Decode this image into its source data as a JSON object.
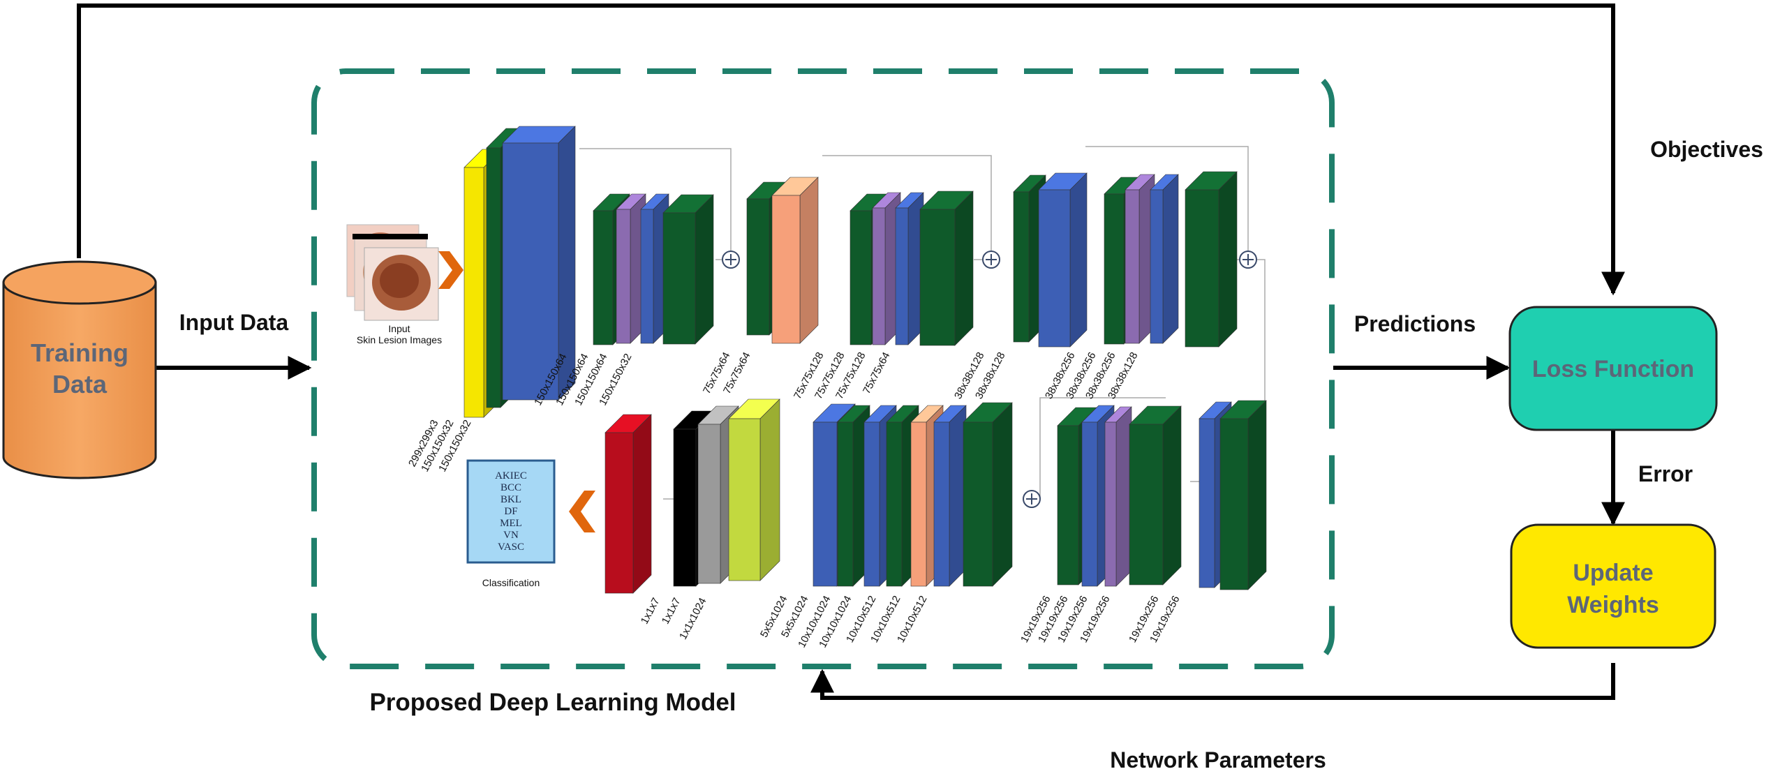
{
  "labels": {
    "training_data": [
      "Training",
      "Data"
    ],
    "input_data": "Input Data",
    "objectives": "Objectives",
    "predictions": "Predictions",
    "loss_function": "Loss Function",
    "error": "Error",
    "update_weights": [
      "Update",
      "Weights"
    ],
    "model_caption": "Proposed Deep Learning Model",
    "network_parameters": "Network Parameters",
    "input_images": [
      "Input",
      "Skin Lesion Images"
    ],
    "classification": "Classification"
  },
  "classes": [
    "AKIEC",
    "BCC",
    "BKL",
    "DF",
    "MEL",
    "VN",
    "VASC"
  ],
  "dims": {
    "input_block": [
      "299x299x3",
      "150x150x32",
      "150x150x32"
    ],
    "block1": [
      "150x150x64",
      "150x150x64",
      "150x150x64",
      "150x150x32"
    ],
    "block2": [
      "75x75x64",
      "75x75x64"
    ],
    "block3": [
      "75x75x128",
      "75x75x128",
      "75x75x128",
      "75x75x64"
    ],
    "block4": [
      "38x38x128",
      "38x38x128"
    ],
    "block5": [
      "38x38x256",
      "38x38x256",
      "38x38x256",
      "38x38x128"
    ],
    "block6": [
      "19x19x256",
      "19x19x256"
    ],
    "block7": [
      "19x19x256",
      "19x19x256",
      "19x19x256",
      "19x19x256"
    ],
    "block8": [
      "5x5x1024",
      "5x5x1024",
      "10x10x1024",
      "10x10x1024",
      "10x10x512",
      "10x10x512",
      "10x10x512"
    ],
    "block9": [
      "1x1x7",
      "1x1x7",
      "1x1x1024"
    ]
  },
  "colors": {
    "training_cylinder": "#f4a05a",
    "training_text": "#5c6678",
    "loss_box": "#1fcfb0",
    "update_box": "#ffe800",
    "dashed_border": "#1f7f6b",
    "arrow": "#e0660d",
    "layer_green": "#0f5a2a",
    "layer_blue": "#3d5fb5",
    "layer_purple": "#8b6bb0",
    "layer_salmon": "#f6a07a",
    "layer_yellow": "#f5e600",
    "layer_red": "#b80d1d",
    "layer_black": "#000000",
    "layer_gray": "#9a9a9a",
    "layer_lime": "#c2d93f",
    "class_box": "#a6d8f5"
  }
}
